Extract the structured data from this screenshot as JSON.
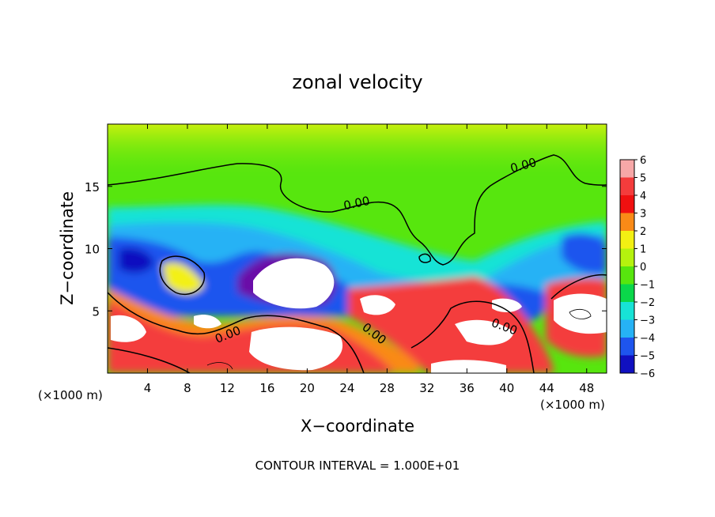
{
  "chart_data": {
    "type": "heatmap",
    "title": "zonal velocity",
    "xlabel": "X−coordinate",
    "ylabel": "Z−coordinate",
    "x_unit_left": "(×1000 m)",
    "x_unit_right": "(×1000 m)",
    "footnote": "CONTOUR INTERVAL = 1.000E+01",
    "contour_label": "0.00",
    "xlim": [
      0,
      50
    ],
    "ylim": [
      0,
      20
    ],
    "x_ticks": [
      4,
      8,
      12,
      16,
      20,
      24,
      28,
      32,
      36,
      40,
      44,
      48
    ],
    "y_ticks": [
      5,
      10,
      15
    ],
    "grid": false,
    "colorbar": {
      "levels": [
        "6",
        "5",
        "4",
        "3",
        "2",
        "1",
        "0",
        "−1",
        "−2",
        "−3",
        "−4",
        "−5",
        "−6"
      ],
      "colors": [
        "#f7a8a8",
        "#f43c3c",
        "#f01010",
        "#f98a17",
        "#f3f013",
        "#b5f20e",
        "#57e60e",
        "#0ad74a",
        "#17e3d6",
        "#26b2f5",
        "#1e55ee",
        "#1010c0",
        "#6a0fa8"
      ]
    },
    "field_colors": {
      "very_positive": "#ffffff",
      "pos_high": "#f7a8a8",
      "pos_mid": "#f43c3c",
      "pos_low": "#f98a17",
      "neutral_light": "#b5f20e",
      "neutral": "#57e60e",
      "neg_low": "#17e3d6",
      "neg_mid": "#26b2f5",
      "neg_high": "#1e55ee",
      "neg_very": "#1010c0",
      "very_negative": "#ffffff"
    }
  }
}
